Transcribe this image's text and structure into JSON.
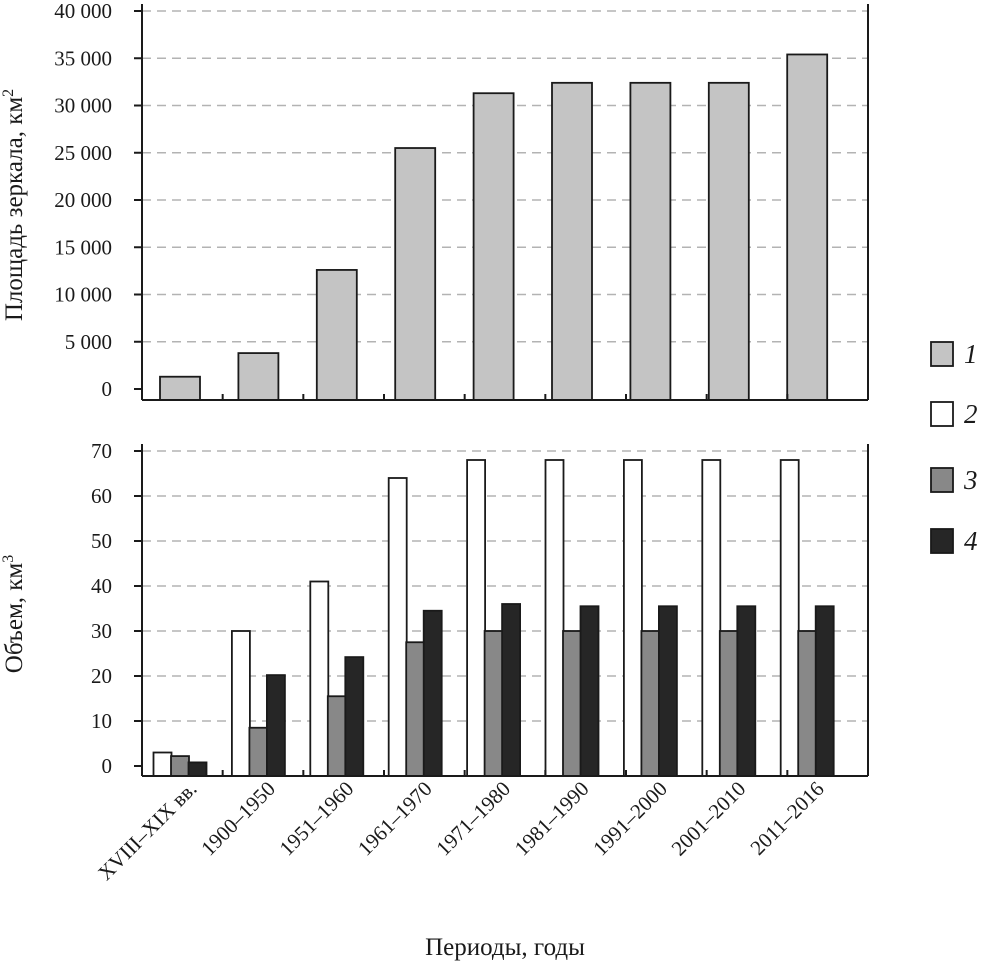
{
  "chart_data": [
    {
      "type": "bar",
      "ylabel": "Площадь зеркала, км",
      "ylabel_sup": "2",
      "ylim": [
        0,
        40000
      ],
      "yticks": [
        0,
        5000,
        10000,
        15000,
        20000,
        25000,
        30000,
        35000,
        40000
      ],
      "ytick_labels": [
        "0",
        "5 000",
        "10 000",
        "15 000",
        "20 000",
        "25 000",
        "30 000",
        "35 000",
        "40 000"
      ],
      "grid": true,
      "categories": [
        "XVIII–XIX вв.",
        "1900–1950",
        "1951–1960",
        "1961–1970",
        "1971–1980",
        "1981–1990",
        "1991–2000",
        "2001–2010",
        "2011–2016"
      ],
      "series": [
        {
          "name": "1",
          "color": "#c4c4c4",
          "values": [
            1300,
            3800,
            12600,
            25500,
            31300,
            32400,
            32400,
            32400,
            35400
          ]
        }
      ]
    },
    {
      "type": "bar",
      "ylabel": "Объем, км",
      "ylabel_sup": "3",
      "xlabel": "Периоды, годы",
      "ylim": [
        0,
        70
      ],
      "yticks": [
        0,
        10,
        20,
        30,
        40,
        50,
        60,
        70
      ],
      "ytick_labels": [
        "0",
        "10",
        "20",
        "30",
        "40",
        "50",
        "60",
        "70"
      ],
      "grid": true,
      "categories": [
        "XVIII–XIX вв.",
        "1900–1950",
        "1951–1960",
        "1961–1970",
        "1971–1980",
        "1981–1990",
        "1991–2000",
        "2001–2010",
        "2011–2016"
      ],
      "series": [
        {
          "name": "2",
          "color": "#ffffff",
          "values": [
            3,
            30,
            41,
            64,
            68,
            68,
            68,
            68,
            68
          ]
        },
        {
          "name": "3",
          "color": "#888888",
          "values": [
            2.2,
            8.5,
            15.5,
            27.5,
            30,
            30,
            30,
            30,
            30
          ]
        },
        {
          "name": "4",
          "color": "#262626",
          "values": [
            0.8,
            20.2,
            24.2,
            34.5,
            36,
            35.5,
            35.5,
            35.5,
            35.5
          ]
        }
      ]
    }
  ],
  "legend": {
    "placement": "right",
    "items": [
      {
        "label": "1",
        "color": "#c4c4c4"
      },
      {
        "label": "2",
        "color": "#ffffff"
      },
      {
        "label": "3",
        "color": "#888888"
      },
      {
        "label": "4",
        "color": "#262626"
      }
    ]
  }
}
